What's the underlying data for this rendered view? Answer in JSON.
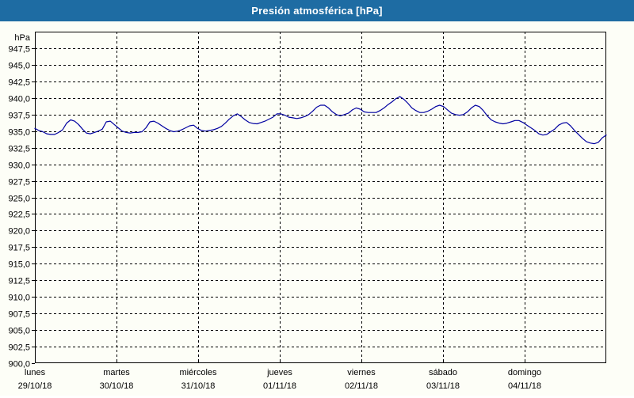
{
  "window": {
    "title": "Presión atmosférica [hPa]"
  },
  "colors": {
    "titlebar": "#1E6CA3",
    "window_border": "#2A6F9D",
    "title_text": "#FFFFFF",
    "background": "#FDFEF7",
    "grid": "#000000",
    "axis": "#000000",
    "label_text": "#000000",
    "series_line": "#0000A0"
  },
  "chart_data": {
    "type": "line",
    "title": "Presión atmosférica [hPa]",
    "grid": "dashed",
    "legend": "none",
    "y_axis": {
      "unit_label": "hPa",
      "min": 900,
      "max": 950,
      "tick_step": 2.5,
      "tick_labels": [
        "900,0",
        "902,5",
        "905,0",
        "907,5",
        "910,0",
        "912,5",
        "915,0",
        "917,5",
        "920,0",
        "922,5",
        "925,0",
        "927,5",
        "930,0",
        "932,5",
        "935,0",
        "937,5",
        "940,0",
        "942,5",
        "945,0",
        "947,5"
      ]
    },
    "x_axis": {
      "span_hours": 168,
      "days": [
        {
          "name": "lunes",
          "date": "29/10/18"
        },
        {
          "name": "martes",
          "date": "30/10/18"
        },
        {
          "name": "miércoles",
          "date": "31/10/18"
        },
        {
          "name": "jueves",
          "date": "01/11/18"
        },
        {
          "name": "viernes",
          "date": "02/11/18"
        },
        {
          "name": "sábado",
          "date": "03/11/18"
        },
        {
          "name": "domingo",
          "date": "04/11/18"
        }
      ]
    },
    "series": [
      {
        "name": "Presión atmosférica",
        "unit": "hPa",
        "color": "#0000A0",
        "sampling": "uniform from 29/10/18 00:00 to 04/11/18 24:00",
        "values": [
          935.4,
          935.1,
          934.9,
          934.6,
          934.5,
          934.5,
          934.8,
          935.2,
          936.2,
          936.7,
          936.5,
          936.0,
          935.3,
          934.7,
          934.6,
          934.8,
          935.0,
          935.3,
          936.4,
          936.5,
          936.0,
          935.5,
          935.0,
          934.8,
          934.7,
          934.8,
          934.8,
          934.9,
          935.5,
          936.4,
          936.5,
          936.2,
          935.8,
          935.4,
          935.1,
          934.9,
          935.0,
          935.2,
          935.5,
          935.8,
          935.9,
          935.4,
          935.1,
          935.0,
          935.1,
          935.2,
          935.4,
          935.7,
          936.2,
          936.8,
          937.3,
          937.6,
          937.2,
          936.7,
          936.3,
          936.15,
          936.1,
          936.3,
          936.5,
          936.8,
          937.1,
          937.6,
          937.6,
          937.4,
          937.1,
          937.0,
          936.9,
          937.0,
          937.2,
          937.5,
          938.0,
          938.6,
          938.9,
          938.9,
          938.5,
          937.9,
          937.5,
          937.3,
          937.5,
          937.7,
          938.2,
          938.5,
          938.3,
          937.9,
          937.8,
          937.8,
          937.8,
          938.1,
          938.5,
          939.0,
          939.4,
          939.9,
          940.2,
          939.8,
          939.2,
          938.5,
          938.1,
          937.8,
          937.8,
          938.0,
          938.3,
          938.7,
          938.9,
          938.7,
          938.2,
          937.7,
          937.5,
          937.4,
          937.5,
          937.9,
          938.5,
          938.9,
          938.7,
          938.1,
          937.3,
          936.7,
          936.4,
          936.2,
          936.1,
          936.2,
          936.4,
          936.6,
          936.6,
          936.3,
          935.9,
          935.5,
          935.1,
          934.6,
          934.4,
          934.5,
          934.9,
          935.3,
          935.9,
          936.2,
          936.3,
          935.8,
          935.1,
          934.5,
          933.9,
          933.4,
          933.2,
          933.1,
          933.3,
          934.0,
          934.4
        ]
      }
    ]
  }
}
